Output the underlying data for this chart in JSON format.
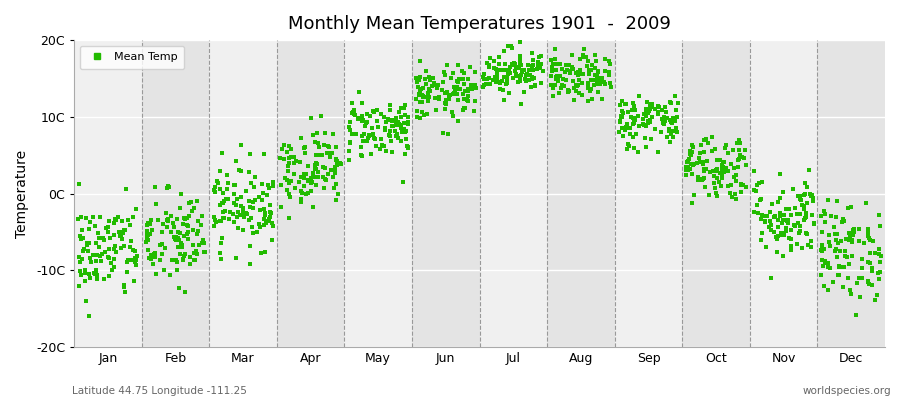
{
  "title": "Monthly Mean Temperatures 1901  -  2009",
  "ylabel": "Temperature",
  "xlabel_labels": [
    "Jan",
    "Feb",
    "Mar",
    "Apr",
    "May",
    "Jun",
    "Jul",
    "Aug",
    "Sep",
    "Oct",
    "Nov",
    "Dec"
  ],
  "ytick_labels": [
    "-20C",
    "-10C",
    "0C",
    "10C",
    "20C"
  ],
  "ytick_values": [
    -20,
    -10,
    0,
    10,
    20
  ],
  "ylim": [
    -20,
    20
  ],
  "dot_color": "#22bb00",
  "dot_size": 6,
  "background_color": "#ffffff",
  "plot_bg_color_light": "#f0f0f0",
  "plot_bg_color_dark": "#e4e4e4",
  "footer_left": "Latitude 44.75 Longitude -111.25",
  "footer_right": "worldspecies.org",
  "legend_label": "Mean Temp",
  "monthly_means": [
    -7.5,
    -6.0,
    -1.5,
    3.5,
    8.5,
    13.0,
    16.0,
    15.0,
    9.5,
    3.5,
    -3.0,
    -7.5
  ],
  "monthly_stds": [
    3.2,
    3.2,
    2.8,
    2.5,
    2.0,
    1.8,
    1.5,
    1.5,
    1.8,
    2.2,
    2.8,
    3.2
  ],
  "n_years": 109,
  "random_seed": 42,
  "dashed_color": "#999999"
}
